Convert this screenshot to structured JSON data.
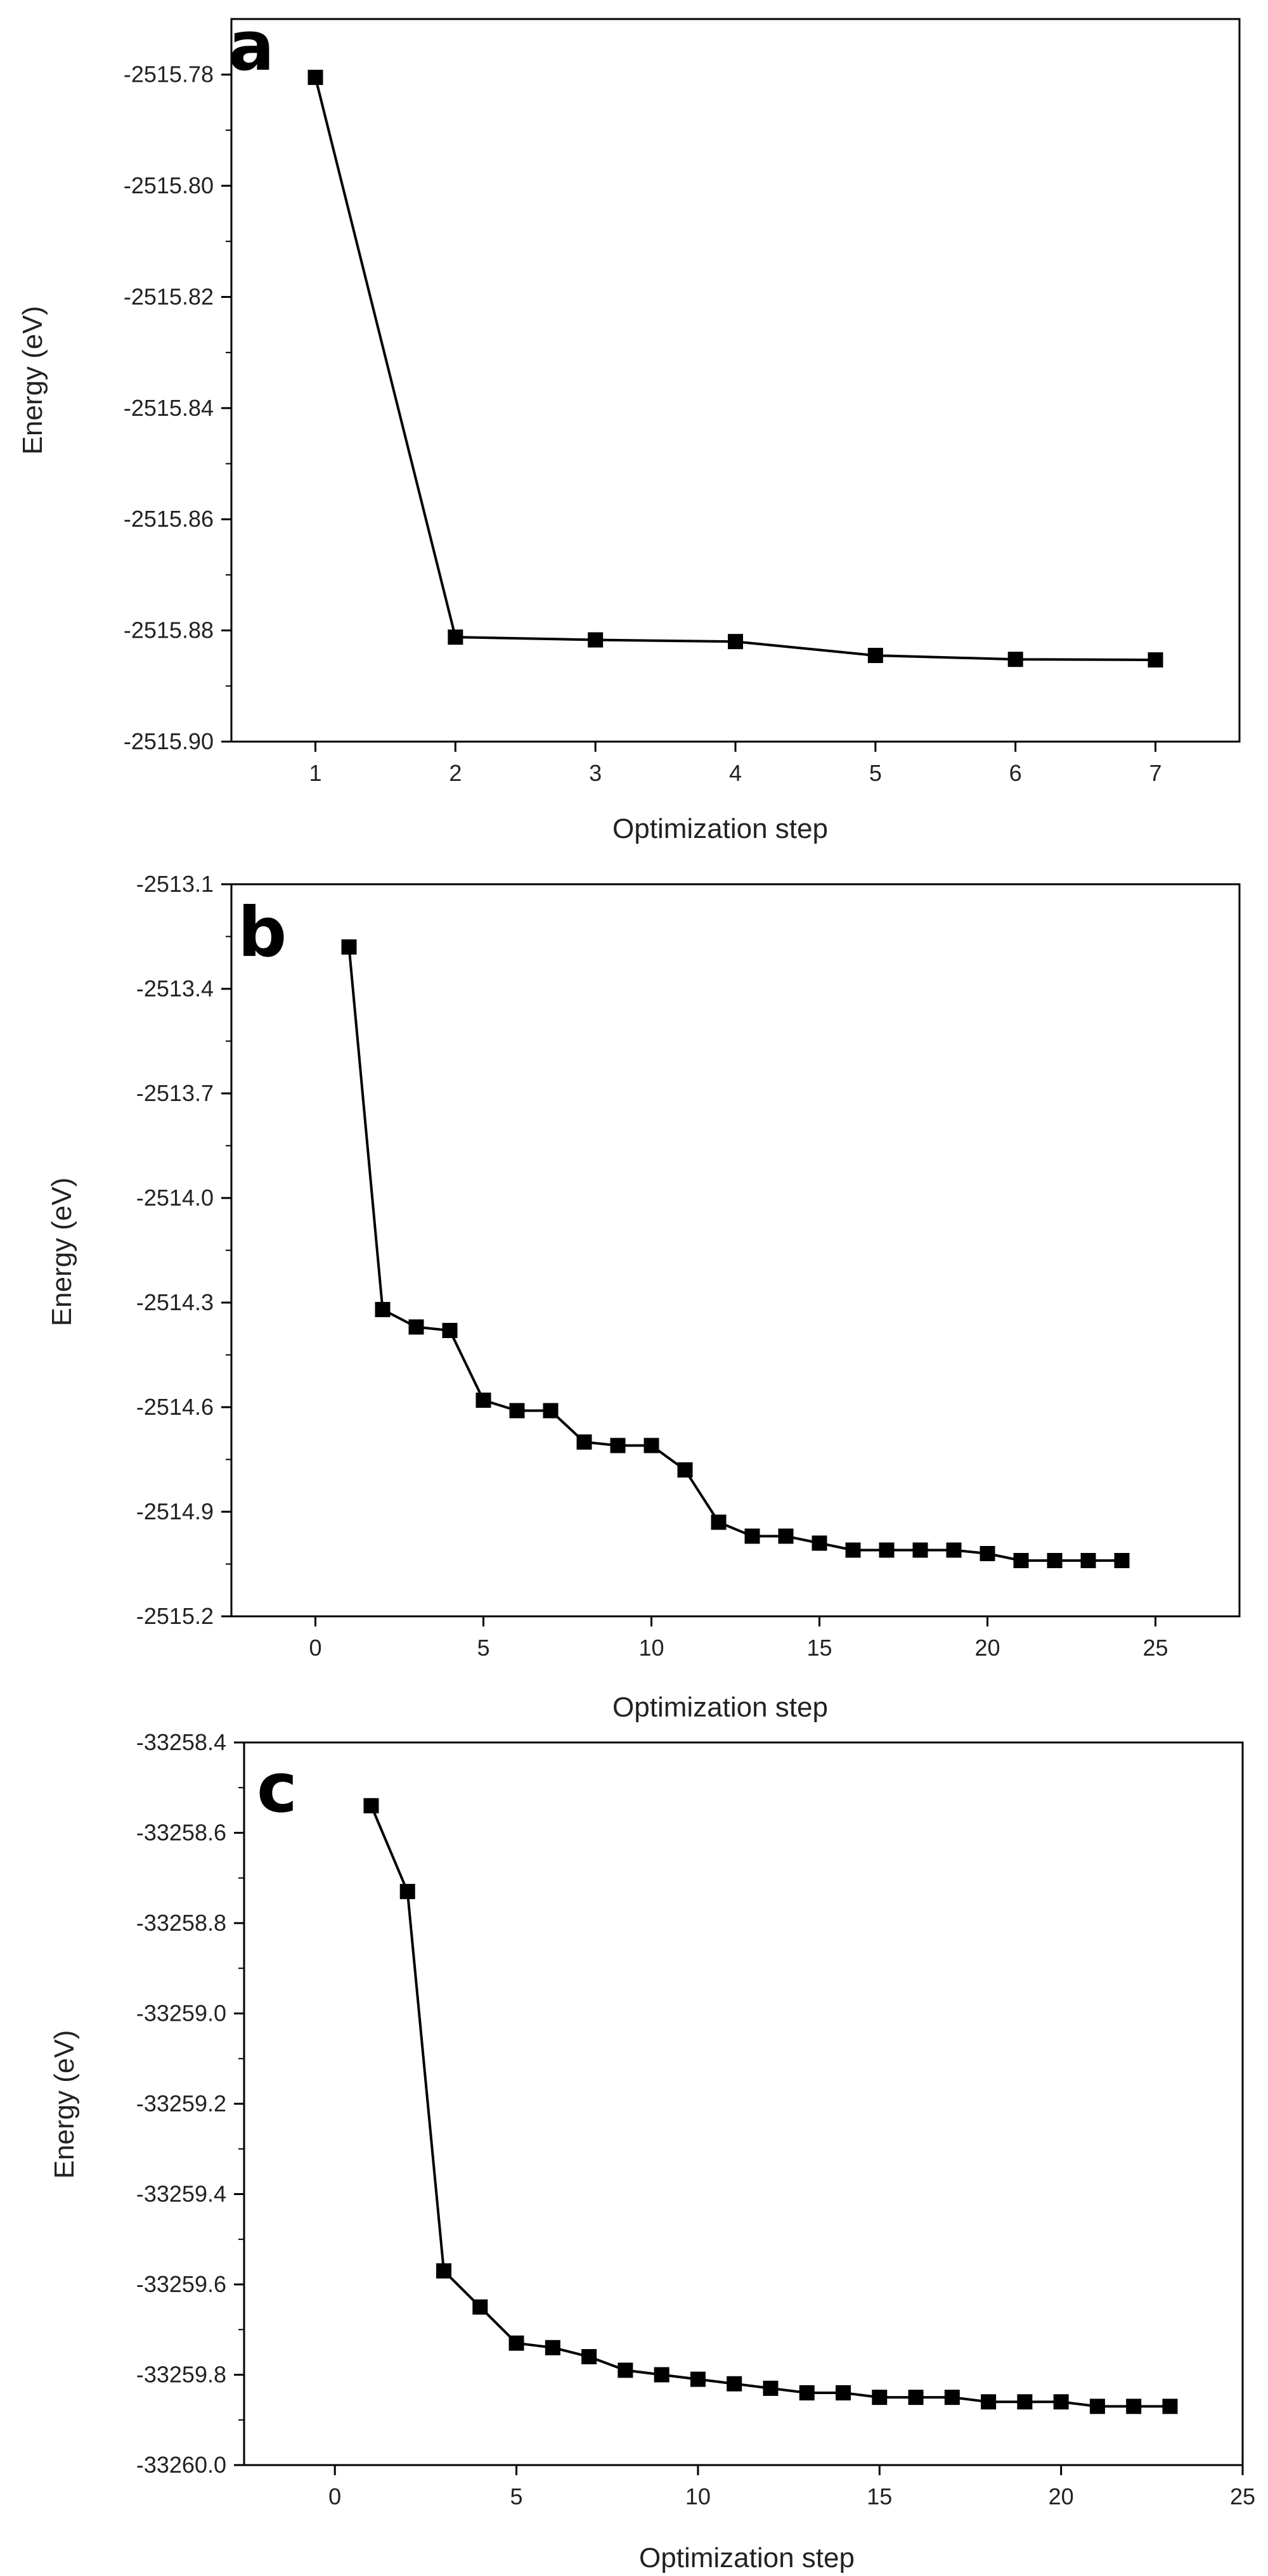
{
  "chart_data": [
    {
      "type": "line",
      "panel_label": "a",
      "xlabel": "Optimization step",
      "ylabel": "Energy (eV)",
      "xlim": [
        0.4,
        7.6
      ],
      "ylim": [
        -2515.9,
        -2515.77
      ],
      "xticks": [
        1,
        2,
        3,
        4,
        5,
        6,
        7
      ],
      "xtick_labels": [
        "1",
        "2",
        "3",
        "4",
        "5",
        "6",
        "7"
      ],
      "yticks": [
        -2515.78,
        -2515.8,
        -2515.82,
        -2515.84,
        -2515.86,
        -2515.88,
        -2515.9
      ],
      "ytick_labels": [
        "-2515.78",
        "-2515.80",
        "-2515.82",
        "-2515.84",
        "-2515.86",
        "-2515.88",
        "-2515.90"
      ],
      "x": [
        1,
        2,
        3,
        4,
        5,
        6,
        7
      ],
      "y": [
        -2515.7805,
        -2515.8812,
        -2515.8817,
        -2515.882,
        -2515.8845,
        -2515.8852,
        -2515.8853
      ]
    },
    {
      "type": "line",
      "panel_label": "b",
      "xlabel": "Optimization step",
      "ylabel": "Energy (eV)",
      "xlim": [
        -2.5,
        27.5
      ],
      "ylim": [
        -2515.2,
        -2513.1
      ],
      "xticks": [
        0,
        5,
        10,
        15,
        20,
        25
      ],
      "xtick_labels": [
        "0",
        "5",
        "10",
        "15",
        "20",
        "25"
      ],
      "yticks": [
        -2513.1,
        -2513.4,
        -2513.7,
        -2514.0,
        -2514.3,
        -2514.6,
        -2514.9,
        -2515.2
      ],
      "ytick_labels": [
        "-2513.1",
        "-2513.4",
        "-2513.7",
        "-2514.0",
        "-2514.3",
        "-2514.6",
        "-2514.9",
        "-2515.2"
      ],
      "x": [
        1,
        2,
        3,
        4,
        5,
        6,
        7,
        8,
        9,
        10,
        11,
        12,
        13,
        14,
        15,
        16,
        17,
        18,
        19,
        20,
        21,
        22,
        23,
        24
      ],
      "y": [
        -2513.28,
        -2514.32,
        -2514.37,
        -2514.38,
        -2514.58,
        -2514.61,
        -2514.61,
        -2514.7,
        -2514.71,
        -2514.71,
        -2514.78,
        -2514.93,
        -2514.97,
        -2514.97,
        -2514.99,
        -2515.01,
        -2515.01,
        -2515.01,
        -2515.01,
        -2515.02,
        -2515.04,
        -2515.04,
        -2515.04,
        -2515.04
      ]
    },
    {
      "type": "line",
      "panel_label": "c",
      "xlabel": "Optimization step",
      "ylabel": "Energy (eV)",
      "xlim": [
        -2.5,
        25.0
      ],
      "ylim": [
        -33260.0,
        -33258.4
      ],
      "xticks": [
        0,
        5,
        10,
        15,
        20,
        25
      ],
      "xtick_labels": [
        "0",
        "5",
        "10",
        "15",
        "20",
        "25"
      ],
      "yticks": [
        -33258.4,
        -33258.6,
        -33258.8,
        -33259.0,
        -33259.2,
        -33259.4,
        -33259.6,
        -33259.8,
        -33260.0
      ],
      "ytick_labels": [
        "-33258.4",
        "-33258.6",
        "-33258.8",
        "-33259.0",
        "-33259.2",
        "-33259.4",
        "-33259.6",
        "-33259.8",
        "-33260.0"
      ],
      "x": [
        1,
        2,
        3,
        4,
        5,
        6,
        7,
        8,
        9,
        10,
        11,
        12,
        13,
        14,
        15,
        16,
        17,
        18,
        19,
        20,
        21,
        22,
        23
      ],
      "y": [
        -33258.54,
        -33258.73,
        -33259.57,
        -33259.65,
        -33259.73,
        -33259.74,
        -33259.76,
        -33259.79,
        -33259.8,
        -33259.81,
        -33259.82,
        -33259.83,
        -33259.84,
        -33259.84,
        -33259.85,
        -33259.85,
        -33259.85,
        -33259.86,
        -33259.86,
        -33259.86,
        -33259.87,
        -33259.87,
        -33259.87
      ]
    }
  ]
}
